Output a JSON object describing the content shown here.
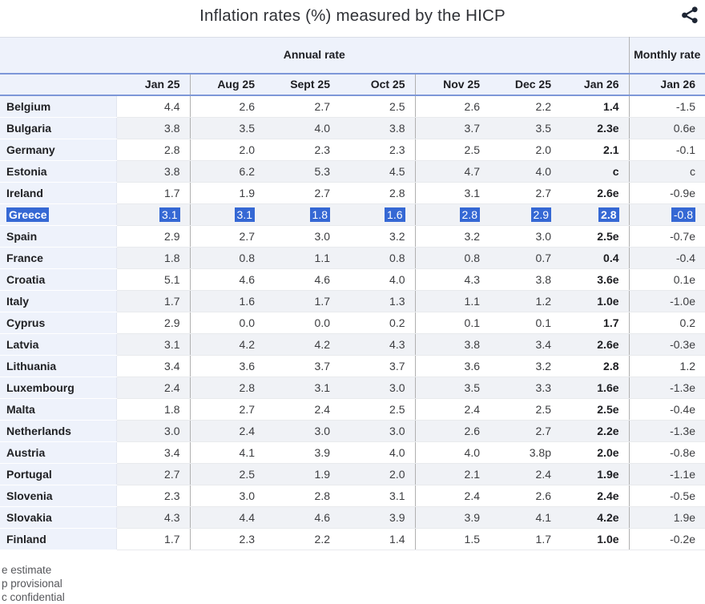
{
  "header": {
    "title": "Inflation rates (%) measured by the HICP",
    "share_icon": "share-icon"
  },
  "chart_data": {
    "type": "table",
    "title": "Inflation rates (%) measured by the HICP",
    "group_headers": {
      "annual": "Annual rate",
      "monthly": "Monthly rate"
    },
    "annual_columns": [
      "Jan 25",
      "Aug 25",
      "Sept 25",
      "Oct 25",
      "Nov 25",
      "Dec 25",
      "Jan 26"
    ],
    "monthly_column": "Jan 26",
    "rows": [
      {
        "country": "Belgium",
        "annual": [
          "4.4",
          "2.6",
          "2.7",
          "2.5",
          "2.6",
          "2.2",
          "1.4"
        ],
        "monthly": "-1.5",
        "highlighted": false
      },
      {
        "country": "Bulgaria",
        "annual": [
          "3.8",
          "3.5",
          "4.0",
          "3.8",
          "3.7",
          "3.5",
          "2.3e"
        ],
        "monthly": "0.6e",
        "highlighted": false
      },
      {
        "country": "Germany",
        "annual": [
          "2.8",
          "2.0",
          "2.3",
          "2.3",
          "2.5",
          "2.0",
          "2.1"
        ],
        "monthly": "-0.1",
        "highlighted": false
      },
      {
        "country": "Estonia",
        "annual": [
          "3.8",
          "6.2",
          "5.3",
          "4.5",
          "4.7",
          "4.0",
          "c"
        ],
        "monthly": "c",
        "highlighted": false
      },
      {
        "country": "Ireland",
        "annual": [
          "1.7",
          "1.9",
          "2.7",
          "2.8",
          "3.1",
          "2.7",
          "2.6e"
        ],
        "monthly": "-0.9e",
        "highlighted": false
      },
      {
        "country": "Greece",
        "annual": [
          "3.1",
          "3.1",
          "1.8",
          "1.6",
          "2.8",
          "2.9",
          "2.8"
        ],
        "monthly": "-0.8",
        "highlighted": true
      },
      {
        "country": "Spain",
        "annual": [
          "2.9",
          "2.7",
          "3.0",
          "3.2",
          "3.2",
          "3.0",
          "2.5e"
        ],
        "monthly": "-0.7e",
        "highlighted": false
      },
      {
        "country": "France",
        "annual": [
          "1.8",
          "0.8",
          "1.1",
          "0.8",
          "0.8",
          "0.7",
          "0.4"
        ],
        "monthly": "-0.4",
        "highlighted": false
      },
      {
        "country": "Croatia",
        "annual": [
          "5.1",
          "4.6",
          "4.6",
          "4.0",
          "4.3",
          "3.8",
          "3.6e"
        ],
        "monthly": "0.1e",
        "highlighted": false
      },
      {
        "country": "Italy",
        "annual": [
          "1.7",
          "1.6",
          "1.7",
          "1.3",
          "1.1",
          "1.2",
          "1.0e"
        ],
        "monthly": "-1.0e",
        "highlighted": false
      },
      {
        "country": "Cyprus",
        "annual": [
          "2.9",
          "0.0",
          "0.0",
          "0.2",
          "0.1",
          "0.1",
          "1.7"
        ],
        "monthly": "0.2",
        "highlighted": false
      },
      {
        "country": "Latvia",
        "annual": [
          "3.1",
          "4.2",
          "4.2",
          "4.3",
          "3.8",
          "3.4",
          "2.6e"
        ],
        "monthly": "-0.3e",
        "highlighted": false
      },
      {
        "country": "Lithuania",
        "annual": [
          "3.4",
          "3.6",
          "3.7",
          "3.7",
          "3.6",
          "3.2",
          "2.8"
        ],
        "monthly": "1.2",
        "highlighted": false
      },
      {
        "country": "Luxembourg",
        "annual": [
          "2.4",
          "2.8",
          "3.1",
          "3.0",
          "3.5",
          "3.3",
          "1.6e"
        ],
        "monthly": "-1.3e",
        "highlighted": false
      },
      {
        "country": "Malta",
        "annual": [
          "1.8",
          "2.7",
          "2.4",
          "2.5",
          "2.4",
          "2.5",
          "2.5e"
        ],
        "monthly": "-0.4e",
        "highlighted": false
      },
      {
        "country": "Netherlands",
        "annual": [
          "3.0",
          "2.4",
          "3.0",
          "3.0",
          "2.6",
          "2.7",
          "2.2e"
        ],
        "monthly": "-1.3e",
        "highlighted": false
      },
      {
        "country": "Austria",
        "annual": [
          "3.4",
          "4.1",
          "3.9",
          "4.0",
          "4.0",
          "3.8p",
          "2.0e"
        ],
        "monthly": "-0.8e",
        "highlighted": false
      },
      {
        "country": "Portugal",
        "annual": [
          "2.7",
          "2.5",
          "1.9",
          "2.0",
          "2.1",
          "2.4",
          "1.9e"
        ],
        "monthly": "-1.1e",
        "highlighted": false
      },
      {
        "country": "Slovenia",
        "annual": [
          "2.3",
          "3.0",
          "2.8",
          "3.1",
          "2.4",
          "2.6",
          "2.4e"
        ],
        "monthly": "-0.5e",
        "highlighted": false
      },
      {
        "country": "Slovakia",
        "annual": [
          "4.3",
          "4.4",
          "4.6",
          "3.9",
          "3.9",
          "4.1",
          "4.2e"
        ],
        "monthly": "1.9e",
        "highlighted": false
      },
      {
        "country": "Finland",
        "annual": [
          "1.7",
          "2.3",
          "2.2",
          "1.4",
          "1.5",
          "1.7",
          "1.0e"
        ],
        "monthly": "-0.2e",
        "highlighted": false
      }
    ]
  },
  "footnotes": [
    "e estimate",
    "p provisional",
    "c confidential"
  ],
  "colors": {
    "selection_highlight": "#3568d4",
    "header_background": "#eef2fb",
    "row_stripe": "#f0f2f6",
    "header_rule_blue": "#7d97d8",
    "column_divider": "#b0b0b0",
    "icon": "#1d2533"
  }
}
